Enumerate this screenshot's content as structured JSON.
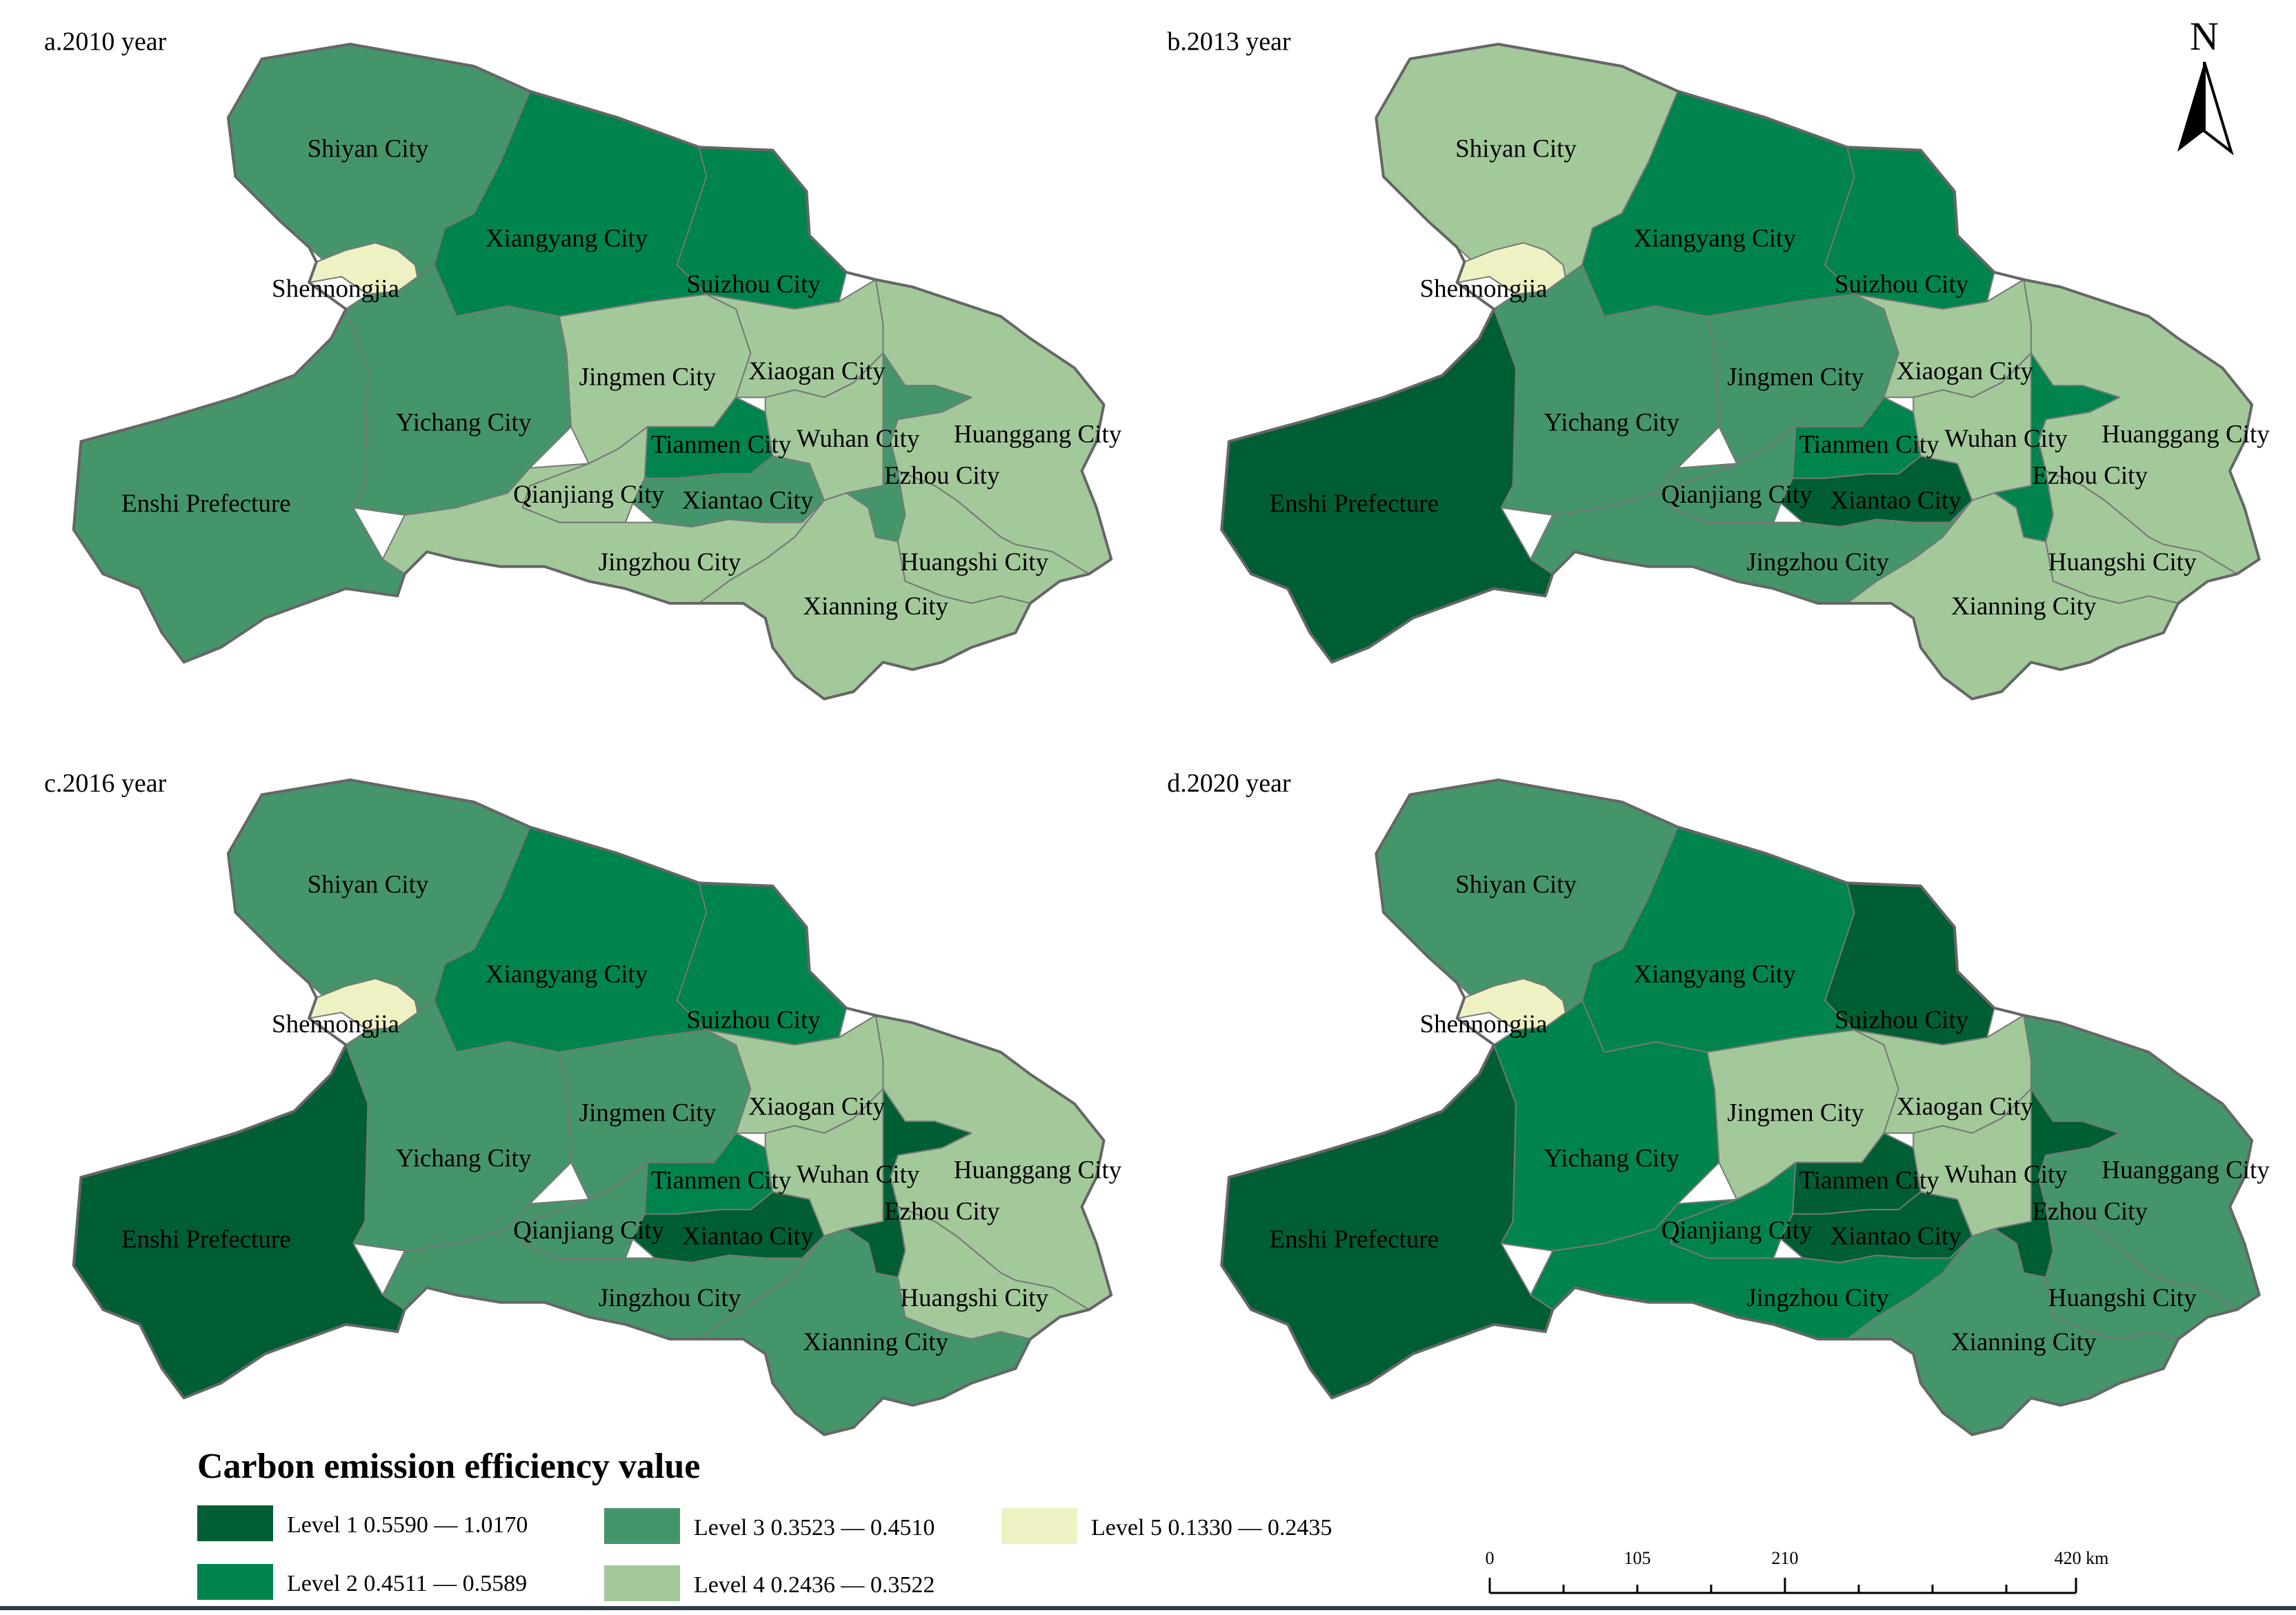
{
  "colors": {
    "level1": "#005e34",
    "level2": "#00844d",
    "level3": "#45956a",
    "level4": "#a3c99b",
    "level5": "#eef2c2",
    "boundary": "#666666",
    "inner_boundary": "#777777",
    "bottom_rule": "#2f3b49"
  },
  "panels": [
    {
      "title": "a.2010 year",
      "levels": {
        "shiyan": 3,
        "xiangyang": 2,
        "suizhou": 2,
        "shennongjia": 5,
        "enshi": 3,
        "yichang": 3,
        "jingmen": 4,
        "xiaogan": 4,
        "huanggang": 4,
        "tianmen": 2,
        "qianjiang": 4,
        "xiantao": 3,
        "wuhan": 4,
        "ezhou": 3,
        "jingzhou": 4,
        "huangshi": 4,
        "xianning": 4
      }
    },
    {
      "title": "b.2013 year",
      "levels": {
        "shiyan": 4,
        "xiangyang": 2,
        "suizhou": 2,
        "shennongjia": 5,
        "enshi": 1,
        "yichang": 3,
        "jingmen": 3,
        "xiaogan": 4,
        "huanggang": 4,
        "tianmen": 2,
        "qianjiang": 3,
        "xiantao": 1,
        "wuhan": 4,
        "ezhou": 2,
        "jingzhou": 3,
        "huangshi": 4,
        "xianning": 4
      }
    },
    {
      "title": "c.2016 year",
      "levels": {
        "shiyan": 3,
        "xiangyang": 2,
        "suizhou": 2,
        "shennongjia": 5,
        "enshi": 1,
        "yichang": 3,
        "jingmen": 3,
        "xiaogan": 4,
        "huanggang": 4,
        "tianmen": 2,
        "qianjiang": 3,
        "xiantao": 1,
        "wuhan": 4,
        "ezhou": 1,
        "jingzhou": 3,
        "huangshi": 4,
        "xianning": 3
      }
    },
    {
      "title": "d.2020 year",
      "levels": {
        "shiyan": 3,
        "xiangyang": 2,
        "suizhou": 1,
        "shennongjia": 5,
        "enshi": 1,
        "yichang": 2,
        "jingmen": 4,
        "xiaogan": 4,
        "huanggang": 3,
        "tianmen": 1,
        "qianjiang": 2,
        "xiantao": 1,
        "wuhan": 4,
        "ezhou": 1,
        "jingzhou": 2,
        "huangshi": 3,
        "xianning": 3
      }
    }
  ],
  "city_names": {
    "shiyan": "Shiyan City",
    "xiangyang": "Xiangyang City",
    "suizhou": "Suizhou City",
    "shennongjia": "Shennongjia",
    "enshi": "Enshi Prefecture",
    "yichang": "Yichang City",
    "jingmen": "Jingmen City",
    "xiaogan": "Xiaogan City",
    "huanggang": "Huanggang City",
    "tianmen": "Tianmen City",
    "qianjiang": "Qianjiang City",
    "xiantao": "Xiantao City",
    "wuhan": "Wuhan City",
    "ezhou": "Ezhou City",
    "jingzhou": "Jingzhou City",
    "huangshi": "Huangshi City",
    "xianning": "Xianning City"
  },
  "legend": {
    "title": "Carbon emission efficiency value",
    "items": [
      {
        "level": 1,
        "label": "Level 1  0.5590 — 1.0170"
      },
      {
        "level": 2,
        "label": "Level 2 0.4511 — 0.5589"
      },
      {
        "level": 3,
        "label": "Level 3 0.3523 — 0.4510"
      },
      {
        "level": 4,
        "label": "Level 4 0.2436 — 0.3522"
      },
      {
        "level": 5,
        "label": "Level 5 0.1330 — 0.2435"
      }
    ]
  },
  "scale_bar": {
    "ticks": [
      "0",
      "105",
      "210",
      "420 km"
    ]
  },
  "north_arrow": {
    "label": "N"
  }
}
